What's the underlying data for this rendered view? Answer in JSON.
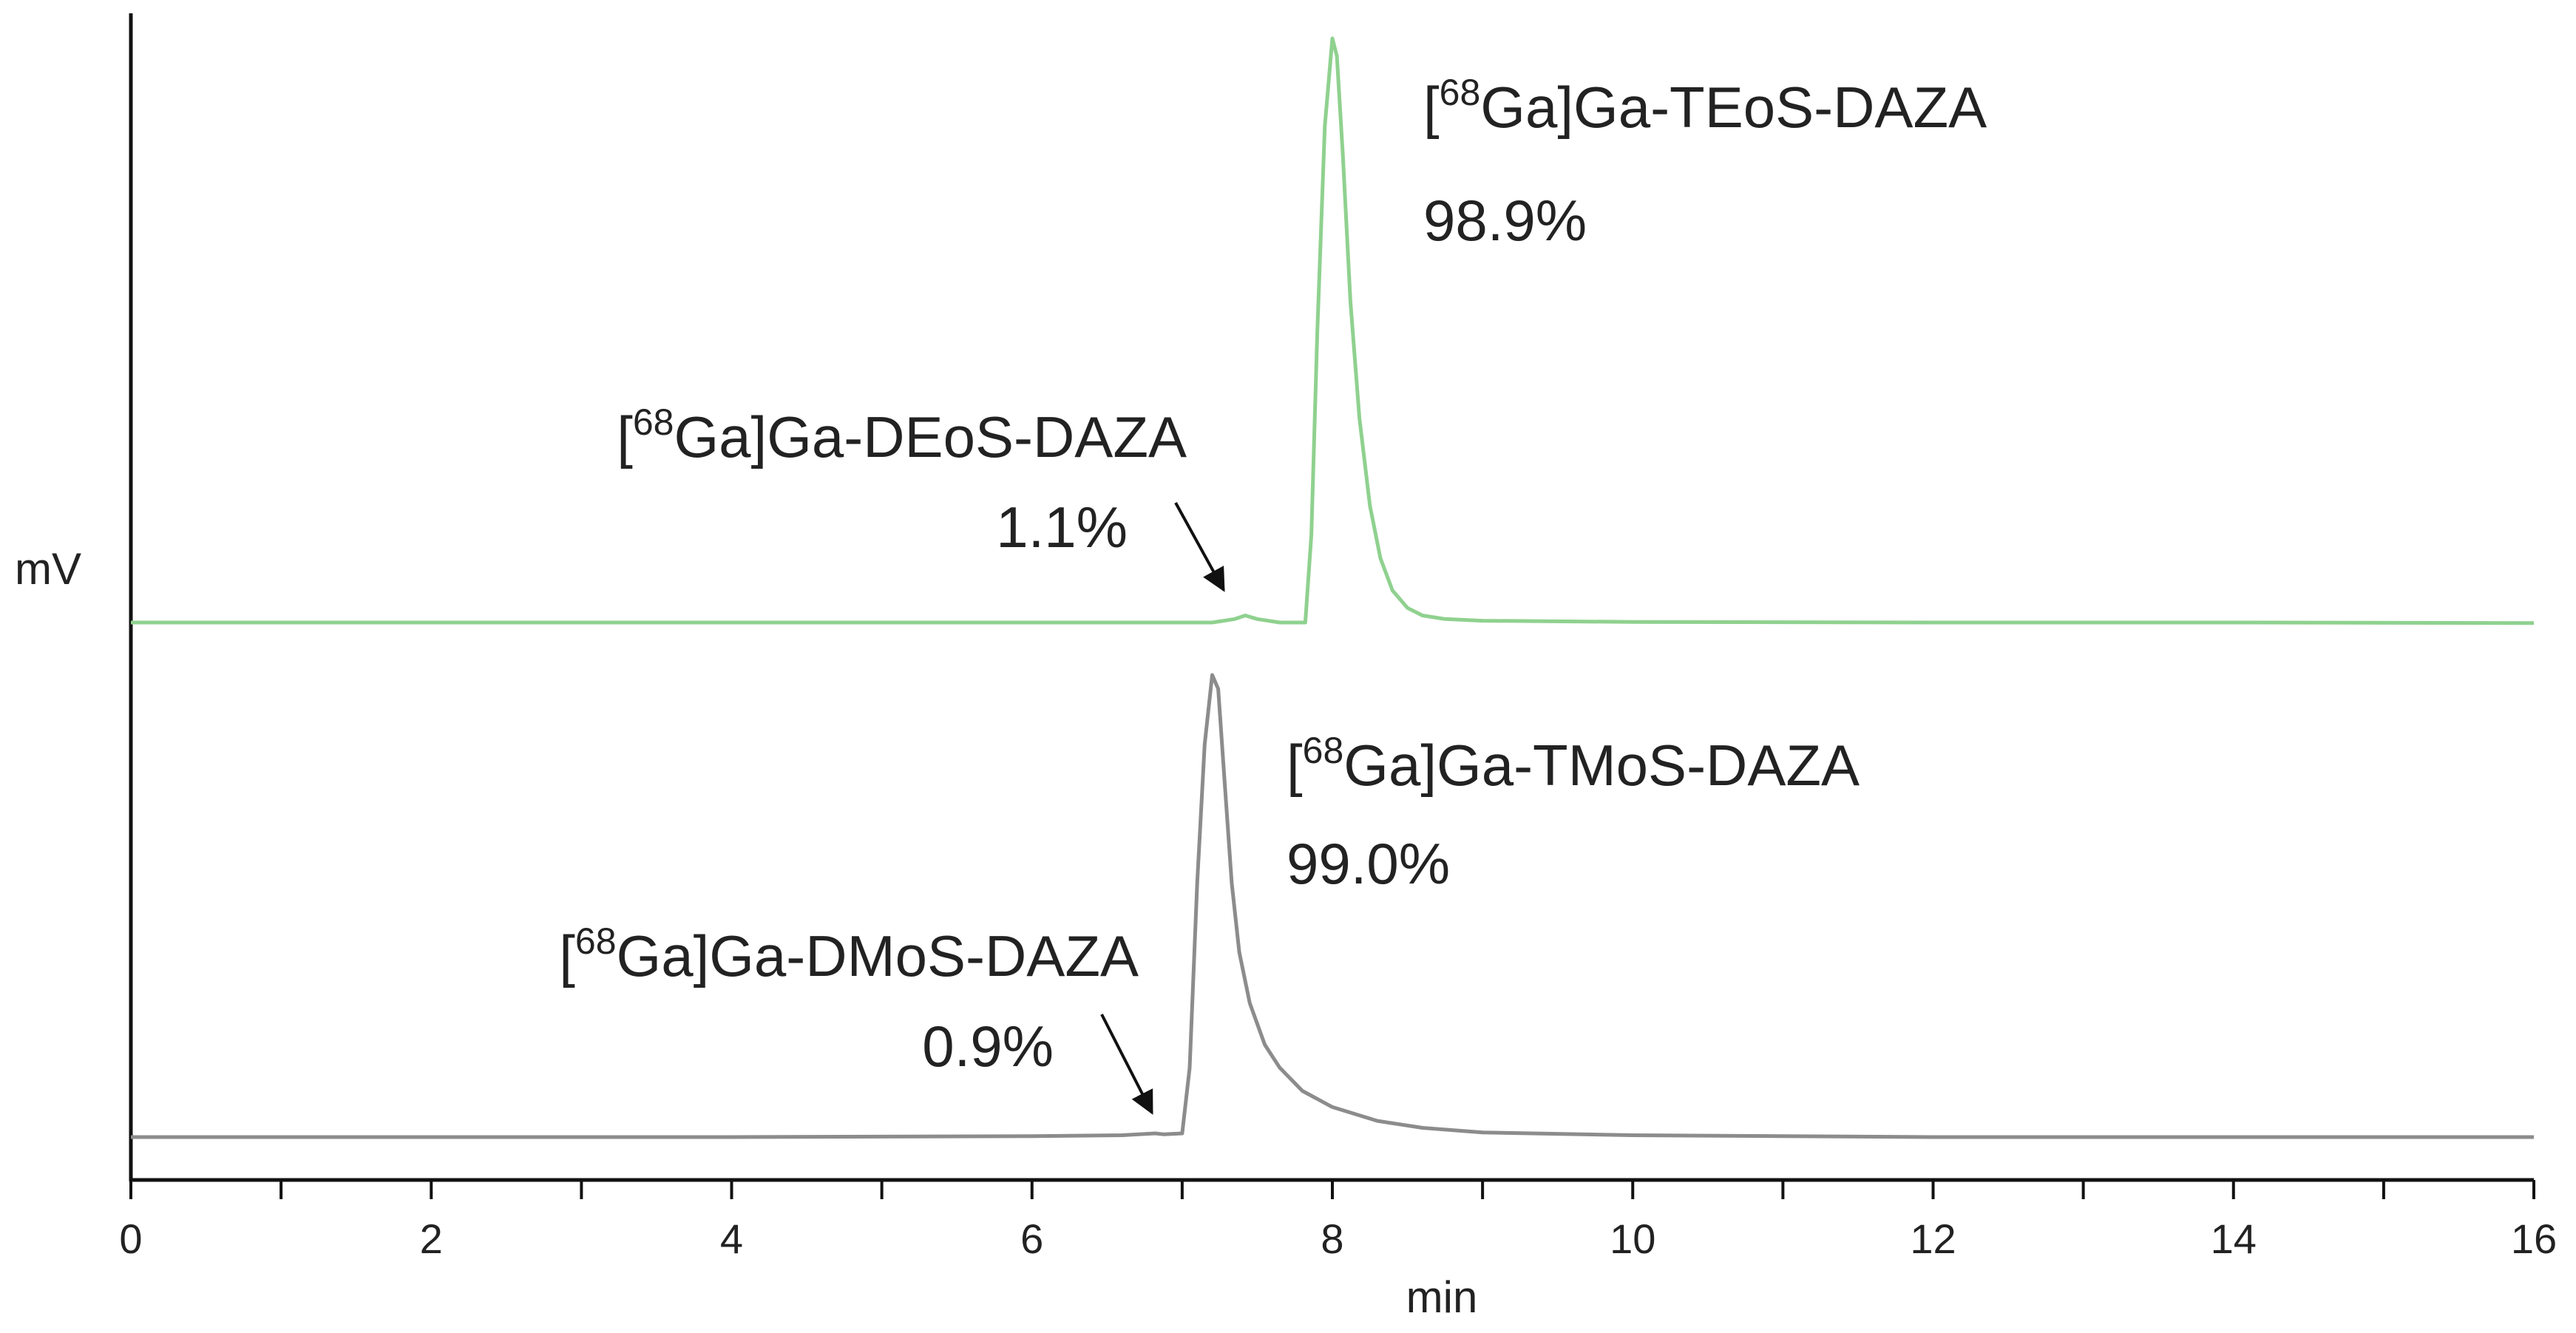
{
  "chart_data": {
    "type": "line",
    "title": "",
    "xlabel": "min",
    "ylabel": "mV",
    "xlim": [
      0,
      16
    ],
    "ylim": [
      0,
      2.05
    ],
    "grid": false,
    "x_ticks": [
      0,
      2,
      4,
      6,
      8,
      10,
      12,
      14,
      16
    ],
    "x_tick_labels": [
      "0",
      "2",
      "4",
      "6",
      "8",
      "10",
      "12",
      "14",
      "16"
    ],
    "series": [
      {
        "name": "[68Ga]Ga-TEoS-DAZA",
        "color": "#8fd18f",
        "x": [
          0,
          2.0,
          4.0,
          6.0,
          7.2,
          7.35,
          7.42,
          7.5,
          7.65,
          7.82,
          7.86,
          7.9,
          7.95,
          8.0,
          8.03,
          8.07,
          8.12,
          8.18,
          8.25,
          8.32,
          8.4,
          8.5,
          8.6,
          8.75,
          9.0,
          10.0,
          12.0,
          14.0,
          16.0
        ],
        "y": [
          1.0,
          1.0,
          1.0,
          1.0,
          1.0,
          1.006,
          1.012,
          1.006,
          1.0,
          1.0,
          1.15,
          1.5,
          1.85,
          2.0,
          1.97,
          1.8,
          1.55,
          1.35,
          1.2,
          1.11,
          1.055,
          1.025,
          1.012,
          1.006,
          1.003,
          1.001,
          1.0,
          1.0,
          0.999
        ]
      },
      {
        "name": "[68Ga]Ga-TMoS-DAZA",
        "color": "#8c8c8c",
        "x": [
          0,
          2.0,
          4.0,
          6.0,
          6.6,
          6.82,
          6.88,
          7.0,
          7.05,
          7.1,
          7.15,
          7.2,
          7.24,
          7.28,
          7.33,
          7.38,
          7.45,
          7.55,
          7.65,
          7.8,
          8.0,
          8.3,
          8.6,
          9.0,
          10.0,
          12.0,
          14.0,
          16.0
        ],
        "y": [
          0.0,
          0.0,
          0.0,
          0.002,
          0.004,
          0.008,
          0.006,
          0.008,
          0.15,
          0.55,
          0.85,
          1.0,
          0.97,
          0.78,
          0.55,
          0.4,
          0.29,
          0.2,
          0.15,
          0.1,
          0.065,
          0.035,
          0.02,
          0.01,
          0.004,
          0.0,
          0.0,
          0.0
        ]
      }
    ],
    "annotations": [
      {
        "series": "[68Ga]Ga-TEoS-DAZA",
        "prefix": "[",
        "sup": "68",
        "label": "Ga]Ga-TEoS-DAZA",
        "value": "98.9%",
        "arrow": false
      },
      {
        "series": "[68Ga]Ga-DEoS-DAZA",
        "prefix": "[",
        "sup": "68",
        "label": "Ga]Ga-DEoS-DAZA",
        "value": "1.1%",
        "arrow": true,
        "arrow_target_x": 7.35
      },
      {
        "series": "[68Ga]Ga-TMoS-DAZA",
        "prefix": "[",
        "sup": "68",
        "label": "Ga]Ga-TMoS-DAZA",
        "value": "99.0%",
        "arrow": false
      },
      {
        "series": "[68Ga]Ga-DMoS-DAZA",
        "prefix": "[",
        "sup": "68",
        "label": "Ga]Ga-DMoS-DAZA",
        "value": "0.9%",
        "arrow": true,
        "arrow_target_x": 6.8
      }
    ]
  }
}
